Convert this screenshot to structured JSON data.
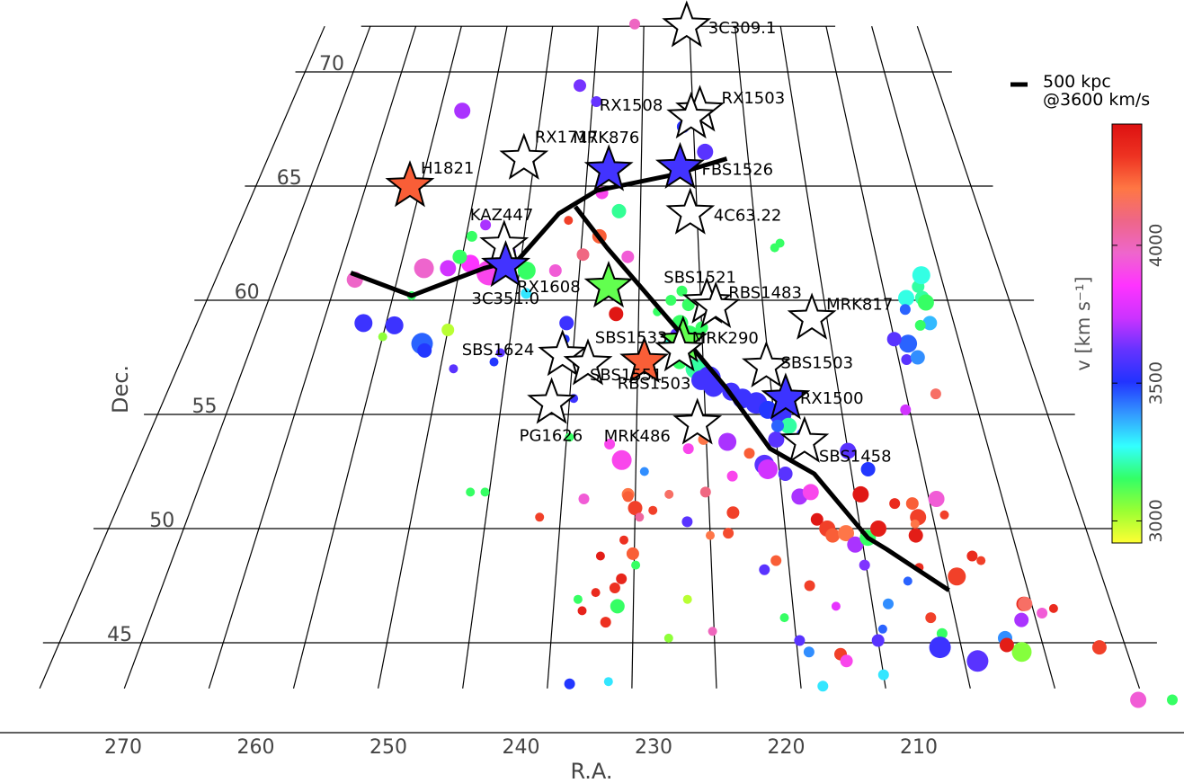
{
  "chart_data": {
    "type": "scatter",
    "xlabel": "R.A.",
    "ylabel": "Dec.",
    "x_ticks": [
      270,
      260,
      250,
      240,
      230,
      220,
      210
    ],
    "y_ticks": [
      45,
      50,
      55,
      60,
      65,
      70
    ],
    "xlim": [
      274,
      208
    ],
    "ylim": [
      43,
      72
    ],
    "grid": true,
    "colorbar": {
      "label": "v [km s⁻¹]",
      "ticks": [
        3000,
        3500,
        4000
      ],
      "range": [
        2920,
        4440
      ],
      "colormap": [
        "#ffff33",
        "#99ff33",
        "#33ff66",
        "#33ffff",
        "#3399ff",
        "#2233ff",
        "#6633ff",
        "#cc33ff",
        "#ff33ff",
        "#ee66cc",
        "#ee6688",
        "#ff7744",
        "#ee3322",
        "#dd1111"
      ]
    },
    "legend": {
      "text": [
        "500 kpc",
        "@3600 km/s"
      ],
      "placement": "top-right"
    },
    "filament_line": [
      [
        264.0,
        61.2
      ],
      [
        258.5,
        60.2
      ],
      [
        253.0,
        61.4
      ],
      [
        250.2,
        61.8
      ],
      [
        247.2,
        63.8
      ],
      [
        244.0,
        64.8
      ],
      [
        237.0,
        65.5
      ],
      [
        232.0,
        66.2
      ]
    ],
    "filament_line_2": [
      [
        245.8,
        64.1
      ],
      [
        242.8,
        62.3
      ],
      [
        237.2,
        58.9
      ],
      [
        233.4,
        56.2
      ],
      [
        230.5,
        53.5
      ],
      [
        227.6,
        52.4
      ],
      [
        224.6,
        49.6
      ],
      [
        223.5,
        49.1
      ],
      [
        220.0,
        47.3
      ]
    ],
    "named_galaxies": [
      {
        "name": "3C309.1",
        "ra": 235.3,
        "dec": 72.0,
        "v": null
      },
      {
        "name": "RX1503",
        "ra": 234.3,
        "dec": 68.3,
        "v": null
      },
      {
        "name": "RX1508",
        "ra": 235.2,
        "dec": 68.0,
        "v": null
      },
      {
        "name": "RX1717",
        "ra": 251.0,
        "dec": 66.2,
        "v": null
      },
      {
        "name": "MRK876",
        "ra": 243.0,
        "dec": 65.7,
        "v": 3560
      },
      {
        "name": "FBS1526",
        "ra": 236.4,
        "dec": 65.8,
        "v": 3560
      },
      {
        "name": "H1821",
        "ra": 261.0,
        "dec": 65.0,
        "v": 4250
      },
      {
        "name": "4C63.22",
        "ra": 235.6,
        "dec": 63.8,
        "v": null
      },
      {
        "name": "KAZ447",
        "ra": 251.6,
        "dec": 62.4,
        "v": null
      },
      {
        "name": "3C351.0",
        "ra": 251.2,
        "dec": 61.5,
        "v": 3560
      },
      {
        "name": "RX1608",
        "ra": 242.5,
        "dec": 60.6,
        "v": 3100
      },
      {
        "name": "SBS1521",
        "ra": 234.5,
        "dec": 59.9,
        "v": null
      },
      {
        "name": "RBS1483",
        "ra": 233.8,
        "dec": 59.7,
        "v": null
      },
      {
        "name": "MRK817",
        "ra": 226.2,
        "dec": 59.2,
        "v": null
      },
      {
        "name": "SBS1533",
        "ra": 236.5,
        "dec": 58.2,
        "v": 3100
      },
      {
        "name": "MRK290",
        "ra": 236.8,
        "dec": 57.8,
        "v": null
      },
      {
        "name": "SBS1503",
        "ra": 230.2,
        "dec": 57.1,
        "v": null
      },
      {
        "name": "SBS1624",
        "ra": 245.8,
        "dec": 57.6,
        "v": null
      },
      {
        "name": "SBS1551",
        "ra": 243.8,
        "dec": 57.2,
        "v": null
      },
      {
        "name": "RBS1503",
        "ra": 239.5,
        "dec": 57.3,
        "v": 4250
      },
      {
        "name": "RX1500",
        "ra": 229.0,
        "dec": 55.7,
        "v": 3550
      },
      {
        "name": "PG1626",
        "ra": 246.3,
        "dec": 55.5,
        "v": null
      },
      {
        "name": "MRK486",
        "ra": 235.6,
        "dec": 54.6,
        "v": null
      },
      {
        "name": "SBS1458",
        "ra": 228.0,
        "dec": 53.8,
        "v": null
      }
    ],
    "galaxies": [
      [
        241.0,
        72.1,
        3990,
        6
      ],
      [
        246.4,
        69.4,
        3640,
        7
      ],
      [
        244.6,
        68.7,
        3620,
        6
      ],
      [
        257.8,
        68.3,
        3700,
        9
      ],
      [
        236.0,
        67.6,
        3520,
        7
      ],
      [
        234.0,
        66.5,
        3600,
        9
      ],
      [
        243.5,
        64.7,
        3900,
        7
      ],
      [
        241.9,
        63.9,
        3190,
        8
      ],
      [
        263.5,
        60.9,
        3980,
        9
      ],
      [
        258.0,
        61.4,
        3970,
        11
      ],
      [
        256.0,
        61.4,
        3750,
        9
      ],
      [
        254.2,
        61.6,
        3850,
        10
      ],
      [
        252.5,
        61.2,
        3900,
        14
      ],
      [
        251.2,
        62.1,
        3650,
        9
      ],
      [
        249.4,
        61.3,
        3150,
        10
      ],
      [
        255.2,
        61.9,
        3150,
        8
      ],
      [
        247.0,
        61.3,
        3950,
        7
      ],
      [
        241.0,
        61.9,
        3950,
        7
      ],
      [
        254.5,
        62.8,
        3150,
        6
      ],
      [
        253.5,
        63.3,
        3700,
        6
      ],
      [
        246.3,
        63.5,
        4300,
        5
      ],
      [
        243.5,
        62.8,
        4250,
        8
      ],
      [
        244.8,
        62.0,
        4100,
        7
      ],
      [
        228.0,
        62.5,
        3150,
        5
      ],
      [
        228.5,
        62.3,
        3150,
        5
      ],
      [
        249.2,
        60.3,
        3300,
        6
      ],
      [
        258.5,
        60.2,
        3150,
        5
      ],
      [
        261.8,
        59.0,
        3550,
        10
      ],
      [
        260.0,
        58.4,
        3050,
        5
      ],
      [
        259.3,
        58.9,
        3550,
        10
      ],
      [
        256.8,
        58.1,
        3450,
        12
      ],
      [
        256.5,
        57.8,
        3500,
        8
      ],
      [
        255.0,
        58.7,
        3000,
        7
      ],
      [
        254.0,
        57.0,
        3600,
        5
      ],
      [
        250.6,
        57.7,
        3600,
        5
      ],
      [
        251.0,
        57.3,
        3500,
        5
      ],
      [
        245.7,
        59.0,
        3550,
        8
      ],
      [
        245.7,
        58.3,
        3500,
        5
      ],
      [
        241.8,
        59.4,
        4420,
        8
      ],
      [
        236.5,
        60.4,
        3150,
        6
      ],
      [
        237.4,
        60.0,
        3150,
        6
      ],
      [
        236.0,
        59.8,
        3150,
        7
      ],
      [
        238.5,
        59.5,
        3150,
        5
      ],
      [
        236.7,
        59.0,
        3150,
        9
      ],
      [
        235.0,
        58.8,
        3150,
        7
      ],
      [
        236.0,
        58.5,
        3150,
        10
      ],
      [
        237.0,
        58.5,
        3600,
        7
      ],
      [
        237.5,
        58.2,
        3250,
        6
      ],
      [
        236.5,
        57.8,
        3300,
        9
      ],
      [
        236.8,
        57.3,
        3150,
        8
      ],
      [
        235.6,
        57.0,
        3200,
        11
      ],
      [
        234.6,
        56.6,
        3560,
        13
      ],
      [
        235.2,
        56.5,
        3560,
        11
      ],
      [
        234.3,
        56.2,
        3560,
        11
      ],
      [
        233.0,
        56.0,
        3560,
        10
      ],
      [
        232.2,
        55.7,
        3550,
        11
      ],
      [
        231.2,
        55.5,
        3550,
        12
      ],
      [
        230.4,
        55.2,
        3500,
        10
      ],
      [
        229.5,
        55.0,
        3550,
        12
      ],
      [
        229.0,
        54.5,
        3200,
        9
      ],
      [
        230.0,
        53.9,
        3600,
        9
      ],
      [
        229.8,
        54.5,
        3450,
        7
      ],
      [
        228.0,
        54.1,
        3500,
        8
      ],
      [
        225.0,
        53.4,
        3600,
        9
      ],
      [
        233.5,
        53.8,
        3700,
        10
      ],
      [
        232.0,
        53.3,
        4250,
        6
      ],
      [
        231.0,
        52.8,
        3600,
        11
      ],
      [
        230.8,
        52.6,
        3750,
        11
      ],
      [
        229.6,
        52.4,
        3600,
        8
      ],
      [
        233.3,
        52.3,
        3900,
        6
      ],
      [
        228.8,
        51.4,
        3700,
        9
      ],
      [
        228.0,
        51.6,
        3900,
        9
      ],
      [
        227.8,
        50.4,
        4420,
        7
      ],
      [
        227.2,
        50.0,
        4300,
        9
      ],
      [
        226.9,
        49.7,
        4250,
        8
      ],
      [
        226.0,
        49.8,
        4200,
        9
      ],
      [
        225.5,
        49.3,
        3700,
        9
      ],
      [
        224.6,
        49.6,
        3150,
        9
      ],
      [
        224.6,
        51.5,
        4420,
        9
      ],
      [
        223.8,
        52.6,
        3500,
        8
      ],
      [
        222.4,
        51.1,
        4350,
        6
      ],
      [
        221.2,
        51.1,
        4250,
        7
      ],
      [
        221.0,
        50.5,
        4300,
        9
      ],
      [
        219.5,
        51.3,
        3950,
        9
      ],
      [
        219.2,
        50.6,
        4300,
        5
      ],
      [
        223.8,
        50.0,
        4400,
        9
      ],
      [
        221.3,
        50.2,
        4200,
        5
      ],
      [
        221.4,
        49.7,
        4400,
        8
      ],
      [
        218.0,
        48.8,
        4350,
        6
      ],
      [
        219.3,
        47.9,
        4300,
        10
      ],
      [
        217.5,
        48.6,
        4300,
        5
      ],
      [
        222.5,
        47.7,
        3450,
        5
      ],
      [
        221.6,
        48.3,
        4350,
        5
      ],
      [
        221.5,
        46.1,
        4300,
        6
      ],
      [
        215.5,
        46.7,
        4350,
        8
      ],
      [
        211.6,
        44.8,
        4300,
        8
      ],
      [
        216.4,
        44.6,
        3060,
        11
      ],
      [
        217.2,
        45.2,
        3400,
        8
      ],
      [
        217.2,
        44.9,
        4400,
        8
      ],
      [
        221.0,
        45.4,
        3150,
        6
      ],
      [
        221.3,
        44.8,
        3550,
        12
      ],
      [
        219.2,
        44.2,
        3600,
        12
      ],
      [
        225.0,
        45.1,
        3600,
        7
      ],
      [
        224.6,
        45.6,
        3450,
        5
      ],
      [
        227.4,
        44.5,
        4300,
        7
      ],
      [
        227.1,
        44.2,
        3900,
        7
      ],
      [
        225.0,
        43.6,
        3300,
        6
      ],
      [
        215.9,
        46.0,
        3700,
        8
      ],
      [
        215.4,
        46.7,
        4150,
        8
      ],
      [
        213.7,
        46.5,
        4350,
        5
      ],
      [
        214.5,
        46.3,
        3950,
        6
      ],
      [
        210.3,
        42.5,
        3950,
        9
      ],
      [
        208.3,
        42.5,
        3150,
        6
      ],
      [
        220.3,
        55.2,
        3750,
        6
      ],
      [
        219.4,
        57.4,
        3600,
        6
      ],
      [
        217.8,
        55.9,
        4150,
        6
      ],
      [
        216.9,
        59.0,
        3350,
        8
      ],
      [
        219.0,
        58.1,
        3450,
        10
      ],
      [
        218.5,
        57.5,
        3400,
        8
      ],
      [
        220.0,
        58.3,
        3600,
        8
      ],
      [
        218.3,
        60.1,
        3250,
        9
      ],
      [
        217.0,
        60.1,
        3200,
        8
      ],
      [
        217.1,
        60.6,
        3200,
        7
      ],
      [
        218.6,
        59.6,
        3450,
        6
      ],
      [
        216.8,
        59.9,
        3150,
        9
      ],
      [
        217.7,
        58.9,
        3150,
        6
      ],
      [
        216.6,
        61.1,
        3250,
        10
      ],
      [
        246.6,
        55.6,
        3150,
        5
      ],
      [
        244.7,
        55.7,
        3550,
        5
      ],
      [
        244.8,
        54.0,
        3150,
        5
      ],
      [
        241.0,
        53.0,
        3900,
        11
      ],
      [
        239.4,
        52.5,
        3400,
        5
      ],
      [
        236.3,
        53.5,
        3900,
        6
      ],
      [
        240.5,
        51.5,
        4200,
        7
      ],
      [
        240.0,
        50.9,
        4300,
        8
      ],
      [
        239.7,
        50.5,
        4050,
        5
      ],
      [
        237.7,
        51.5,
        4150,
        5
      ],
      [
        238.8,
        50.8,
        4300,
        5
      ],
      [
        235.2,
        51.6,
        4100,
        6
      ],
      [
        236.5,
        50.3,
        3600,
        6
      ],
      [
        235.0,
        49.7,
        4200,
        5
      ],
      [
        233.4,
        50.7,
        4300,
        7
      ],
      [
        233.8,
        49.8,
        4280,
        6
      ],
      [
        240.7,
        49.5,
        4330,
        5
      ],
      [
        240.1,
        48.9,
        4250,
        7
      ],
      [
        239.9,
        48.4,
        3150,
        5
      ],
      [
        241.0,
        46.6,
        3150,
        8
      ],
      [
        241.2,
        47.4,
        4330,
        6
      ],
      [
        240.8,
        47.8,
        4370,
        6
      ],
      [
        242.4,
        47.2,
        4350,
        5
      ],
      [
        243.5,
        46.9,
        3150,
        5
      ],
      [
        241.7,
        45.9,
        4330,
        6
      ],
      [
        243.2,
        46.4,
        4380,
        5
      ],
      [
        236.6,
        46.9,
        3000,
        5
      ],
      [
        235.1,
        45.5,
        4000,
        5
      ],
      [
        237.8,
        45.2,
        3050,
        5
      ],
      [
        229.3,
        44.6,
        3400,
        6
      ],
      [
        228.7,
        43.1,
        3300,
        6
      ],
      [
        229.8,
        45.1,
        3600,
        6
      ],
      [
        230.6,
        46.1,
        3150,
        5
      ],
      [
        227.3,
        46.6,
        3800,
        5
      ],
      [
        228.8,
        47.5,
        4300,
        6
      ],
      [
        231.6,
        48.2,
        3600,
        6
      ],
      [
        230.8,
        48.6,
        4250,
        6
      ],
      [
        225.1,
        48.4,
        3650,
        6
      ],
      [
        224.0,
        46.7,
        3400,
        6
      ],
      [
        243.7,
        43.2,
        3500,
        6
      ],
      [
        241.4,
        43.3,
        3300,
        5
      ],
      [
        251.3,
        51.6,
        3150,
        5
      ],
      [
        250.3,
        51.6,
        3150,
        5
      ],
      [
        246.4,
        50.5,
        4300,
        5
      ],
      [
        243.5,
        51.3,
        3950,
        6
      ],
      [
        241.9,
        53.7,
        3900,
        6
      ],
      [
        240.5,
        51.4,
        4250,
        6
      ],
      [
        235.2,
        53.9,
        4200,
        6
      ],
      [
        242.2,
        48.8,
        4400,
        5
      ]
    ]
  }
}
